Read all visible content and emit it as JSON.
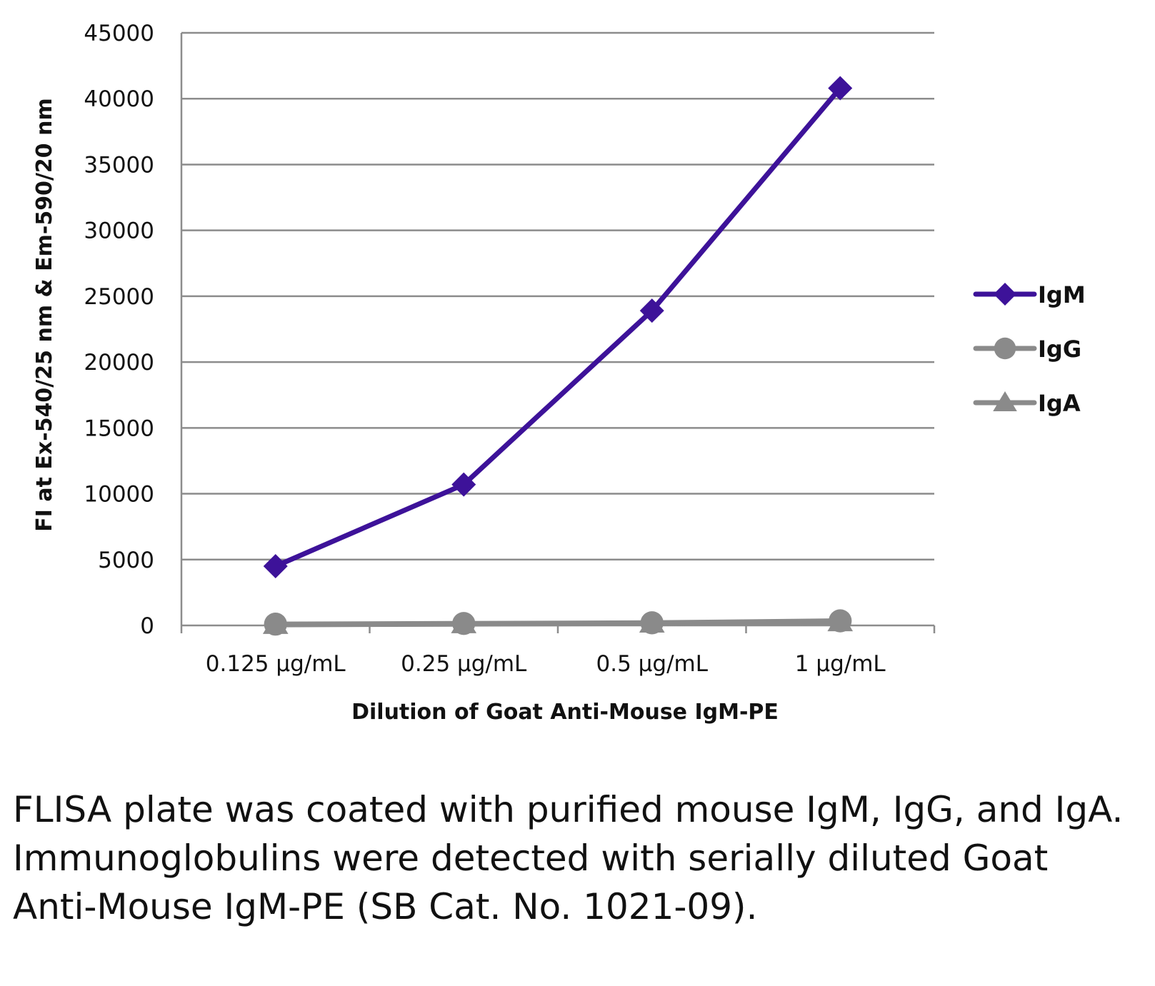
{
  "chart_data": {
    "type": "line",
    "xlabel": "Dilution of Goat Anti-Mouse IgM-PE",
    "ylabel": "FI at Ex-540/25 nm & Em-590/20 nm",
    "categories": [
      "0.125 µg/mL",
      "0.25 µg/mL",
      "0.5 µg/mL",
      "1 µg/mL"
    ],
    "ylim": [
      0,
      45000
    ],
    "yticks": [
      0,
      5000,
      10000,
      15000,
      20000,
      25000,
      30000,
      35000,
      40000,
      45000
    ],
    "grid": true,
    "legend_position": "right",
    "series": [
      {
        "name": "IgM",
        "values": [
          4500,
          10700,
          23900,
          40800
        ],
        "color": "#3d1299",
        "marker": "diamond"
      },
      {
        "name": "IgG",
        "values": [
          100,
          150,
          200,
          350
        ],
        "color": "#8a8a8a",
        "marker": "circle"
      },
      {
        "name": "IgA",
        "values": [
          50,
          100,
          150,
          250
        ],
        "color": "#8a8a8a",
        "marker": "triangle"
      }
    ]
  },
  "caption": "FLISA plate was coated with purified mouse IgM, IgG, and IgA.  Immunoglobulins were detected with serially diluted Goat Anti-Mouse IgM-PE (SB Cat. No. 1021-09)."
}
